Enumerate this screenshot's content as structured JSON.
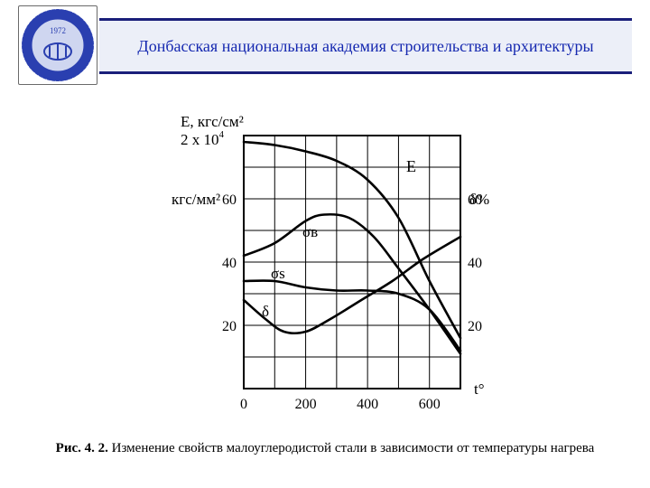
{
  "header": {
    "title": "Донбасская национальная академия строительства и архитектуры",
    "border_color": "#1a1f7a",
    "bg_color": "#eceff8",
    "text_color": "#1528b0",
    "title_fontsize": 18
  },
  "logo": {
    "ring_color": "#2a3fb0",
    "ring_text_color": "#ffffff",
    "inner_bg": "#cfd6f0",
    "inner_stroke": "#2a3fb0",
    "year": "1972"
  },
  "figure": {
    "type": "line",
    "stroke_color": "#000000",
    "background_color": "#ffffff",
    "line_width_curve": 2.6,
    "line_width_grid": 1,
    "axis": {
      "x": {
        "min": 0,
        "max": 700,
        "tick_step": 100,
        "labelled_ticks": [
          0,
          200,
          400,
          600
        ],
        "label": "t°"
      },
      "y_left_outer": {
        "unit": "кгс/мм²",
        "ticks": [
          20,
          40,
          60
        ]
      },
      "y_left_top": {
        "unit": "Е, кгс/см²",
        "sub": "2 х 10",
        "exp": "4"
      },
      "y_right": {
        "unit": "δ%",
        "ticks": [
          20,
          40,
          60
        ]
      }
    },
    "label_fontsize": 17,
    "tick_fontsize": 16,
    "curves": {
      "E": {
        "label": "E",
        "points": [
          [
            0,
            78
          ],
          [
            100,
            77
          ],
          [
            200,
            75
          ],
          [
            300,
            72
          ],
          [
            400,
            66
          ],
          [
            500,
            54
          ],
          [
            600,
            34
          ],
          [
            700,
            16
          ]
        ]
      },
      "sigma_v": {
        "label": "σв",
        "points": [
          [
            0,
            42
          ],
          [
            100,
            46
          ],
          [
            200,
            53
          ],
          [
            260,
            55
          ],
          [
            340,
            54
          ],
          [
            420,
            48
          ],
          [
            500,
            38
          ],
          [
            600,
            25
          ],
          [
            700,
            11
          ]
        ]
      },
      "sigma_s": {
        "label": "σs",
        "points": [
          [
            0,
            34
          ],
          [
            100,
            34
          ],
          [
            200,
            32
          ],
          [
            300,
            31
          ],
          [
            400,
            31
          ],
          [
            500,
            30
          ],
          [
            600,
            25
          ],
          [
            700,
            12
          ]
        ]
      },
      "delta": {
        "label": "δ",
        "points": [
          [
            0,
            28
          ],
          [
            70,
            22
          ],
          [
            130,
            18
          ],
          [
            200,
            18
          ],
          [
            280,
            22
          ],
          [
            380,
            28
          ],
          [
            480,
            34
          ],
          [
            580,
            41
          ],
          [
            700,
            48
          ]
        ]
      }
    }
  },
  "caption": {
    "prefix": "Рис. 4. 2.",
    "text": "Изменение свойств малоуглеродистой стали в зависимости от температуры нагрева",
    "fontsize": 15
  }
}
